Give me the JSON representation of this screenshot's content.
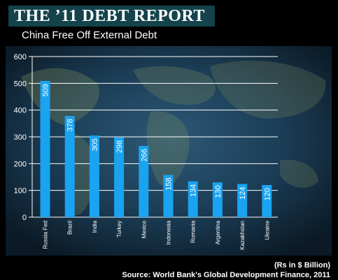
{
  "header": {
    "title": "THE ’11 DEBT REPORT",
    "subtitle": "China Free Off External Debt"
  },
  "footer": {
    "unit": "(Rs in $ Billion)",
    "source": "Source: World Bank's Global Development Finance, 2011"
  },
  "colors": {
    "bar": "#1aa3f0",
    "background": "#000000",
    "title_band": "#14434c",
    "grid": "#ffffff"
  },
  "chart_data": {
    "type": "bar",
    "categories": [
      "Russia Fed",
      "Brazil",
      "India",
      "Turkey",
      "Mexico",
      "Indonesia",
      "Romania",
      "Argentina",
      "Kazakhstan",
      "Ukraine"
    ],
    "values": [
      509,
      378,
      305,
      298,
      266,
      158,
      134,
      130,
      124,
      120
    ],
    "ylim": [
      0,
      600
    ],
    "yticks": [
      0,
      100,
      200,
      300,
      400,
      500,
      600
    ],
    "grid": true,
    "value_labels": true
  }
}
